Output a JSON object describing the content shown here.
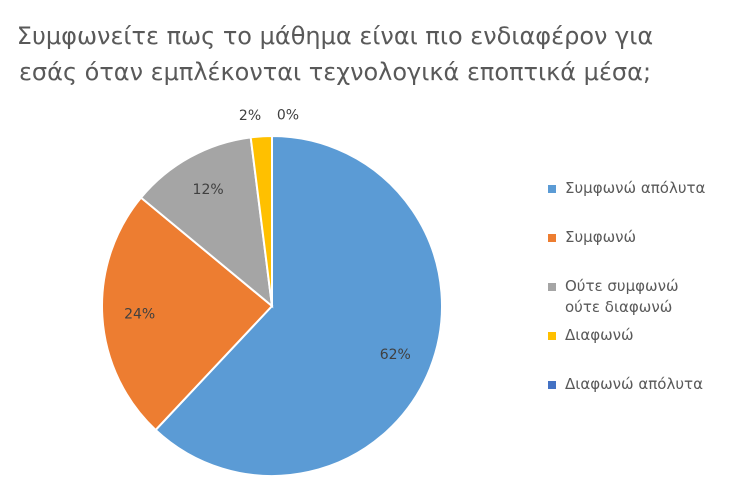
{
  "chart_data": {
    "type": "pie",
    "title": [
      "Συμφωνείτε πως το μάθημα είναι πιο ενδιαφέρον για",
      "εσάς όταν εμπλέκονται τεχνολογικά εποπτικά μέσα;"
    ],
    "categories": [
      "Συμφωνώ απόλυτα",
      "Συμφωνώ",
      "Ούτε συμφωνώ ούτε διαφωνώ",
      "Διαφωνώ",
      "Διαφωνώ απόλυτα"
    ],
    "values": [
      62,
      24,
      12,
      2,
      0
    ],
    "value_labels": [
      "62%",
      "24%",
      "12%",
      "2%",
      "0%"
    ],
    "colors": [
      "#5b9bd5",
      "#ed7d31",
      "#a5a5a5",
      "#ffc000",
      "#4472c4"
    ],
    "legend": "right"
  }
}
